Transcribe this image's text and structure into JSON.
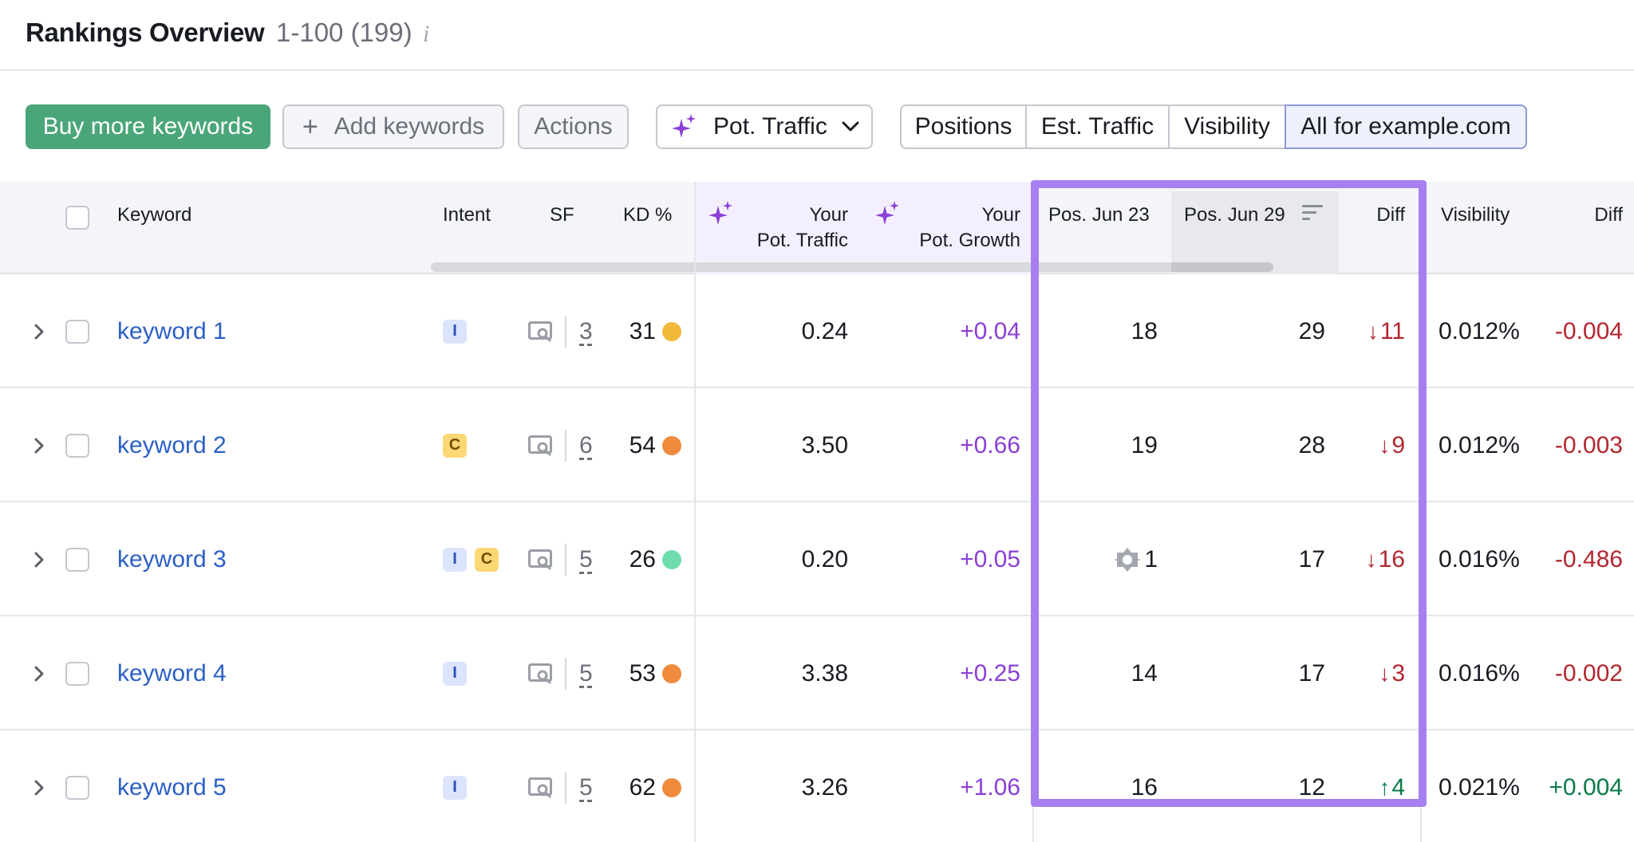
{
  "header": {
    "title": "Rankings Overview",
    "range": "1-100 (199)",
    "info_glyph": "i"
  },
  "toolbar": {
    "buy_label": "Buy more keywords",
    "add_label": "Add keywords",
    "actions_label": "Actions",
    "pot_traffic_label": "Pot. Traffic",
    "segments": [
      "Positions",
      "Est. Traffic",
      "Visibility",
      "All for example.com"
    ],
    "active_segment": "All for example.com"
  },
  "columns": {
    "keyword": "Keyword",
    "intent": "Intent",
    "sf": "SF",
    "kd": "KD %",
    "your_pot_traffic_1": "Your",
    "your_pot_traffic_2": "Pot. Traffic",
    "your_pot_growth_1": "Your",
    "your_pot_growth_2": "Pot. Growth",
    "pos_jun23": "Pos. Jun 23",
    "pos_jun29": "Pos. Jun 29",
    "diff": "Diff",
    "visibility": "Visibility",
    "vis_diff": "Diff"
  },
  "colors": {
    "accent_green": "#4aa679",
    "highlight": "#a67ff0",
    "link": "#2b60c5",
    "growth": "#8a3fd6",
    "negative": "#b4262f",
    "positive": "#0b7b49"
  },
  "rows": [
    {
      "keyword": "keyword 1",
      "intents": [
        "I"
      ],
      "sf": "3",
      "kd": "31",
      "kd_color": "#f2b83a",
      "pot_traffic": "0.24",
      "pot_growth": "+0.04",
      "pos_jun23": "18",
      "pos_jun23_icon": null,
      "pos_jun29": "29",
      "diff_arrow": "↓",
      "diff": "11",
      "diff_dir": "down",
      "visibility": "0.012%",
      "vis_diff": "-0.004",
      "vis_dir": "down"
    },
    {
      "keyword": "keyword 2",
      "intents": [
        "C"
      ],
      "sf": "6",
      "kd": "54",
      "kd_color": "#f08a3c",
      "pot_traffic": "3.50",
      "pot_growth": "+0.66",
      "pos_jun23": "19",
      "pos_jun23_icon": null,
      "pos_jun29": "28",
      "diff_arrow": "↓",
      "diff": "9",
      "diff_dir": "down",
      "visibility": "0.012%",
      "vis_diff": "-0.003",
      "vis_dir": "down"
    },
    {
      "keyword": "keyword 3",
      "intents": [
        "I",
        "C"
      ],
      "sf": "5",
      "kd": "26",
      "kd_color": "#6fdcb0",
      "pot_traffic": "0.20",
      "pot_growth": "+0.05",
      "pos_jun23": "1",
      "pos_jun23_icon": "featured-snippet-icon",
      "pos_jun29": "17",
      "diff_arrow": "↓",
      "diff": "16",
      "diff_dir": "down",
      "visibility": "0.016%",
      "vis_diff": "-0.486",
      "vis_dir": "down"
    },
    {
      "keyword": "keyword 4",
      "intents": [
        "I"
      ],
      "sf": "5",
      "kd": "53",
      "kd_color": "#f08a3c",
      "pot_traffic": "3.38",
      "pot_growth": "+0.25",
      "pos_jun23": "14",
      "pos_jun23_icon": null,
      "pos_jun29": "17",
      "diff_arrow": "↓",
      "diff": "3",
      "diff_dir": "down",
      "visibility": "0.016%",
      "vis_diff": "-0.002",
      "vis_dir": "down"
    },
    {
      "keyword": "keyword 5",
      "intents": [
        "I"
      ],
      "sf": "5",
      "kd": "62",
      "kd_color": "#f08a3c",
      "pot_traffic": "3.26",
      "pot_growth": "+1.06",
      "pos_jun23": "16",
      "pos_jun23_icon": null,
      "pos_jun29": "12",
      "diff_arrow": "↑",
      "diff": "4",
      "diff_dir": "up",
      "visibility": "0.021%",
      "vis_diff": "+0.004",
      "vis_dir": "up"
    }
  ]
}
